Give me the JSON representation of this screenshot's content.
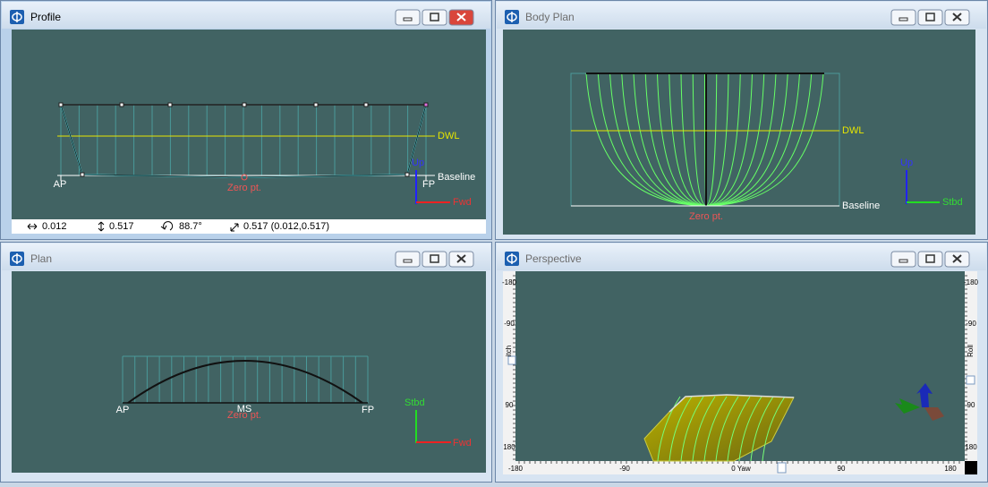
{
  "profile": {
    "title": "Profile",
    "dwl": "DWL",
    "baseline": "Baseline",
    "ap": "AP",
    "fp": "FP",
    "zero": "Zero pt.",
    "up": "Up",
    "fwd": "Fwd",
    "status": [
      "0.012",
      "0.517",
      "88.7°",
      "0.517 (0.012,0.517)"
    ]
  },
  "body_plan": {
    "title": "Body Plan",
    "dwl": "DWL",
    "baseline": "Baseline",
    "zero": "Zero pt.",
    "up": "Up",
    "stbd": "Stbd"
  },
  "plan": {
    "title": "Plan",
    "ap": "AP",
    "ms": "MS",
    "fp": "FP",
    "zero": "Zero pt.",
    "stbd": "Stbd",
    "fwd": "Fwd"
  },
  "perspective": {
    "title": "Perspective",
    "left_ruler": [
      "-180",
      "-90",
      "itch",
      "90",
      "180"
    ],
    "right_ruler": [
      "-180",
      "-90",
      "Roll",
      "90",
      "180"
    ],
    "bottom_ruler": [
      "-180",
      "-90",
      "0 Yaw",
      "90",
      "180"
    ]
  }
}
